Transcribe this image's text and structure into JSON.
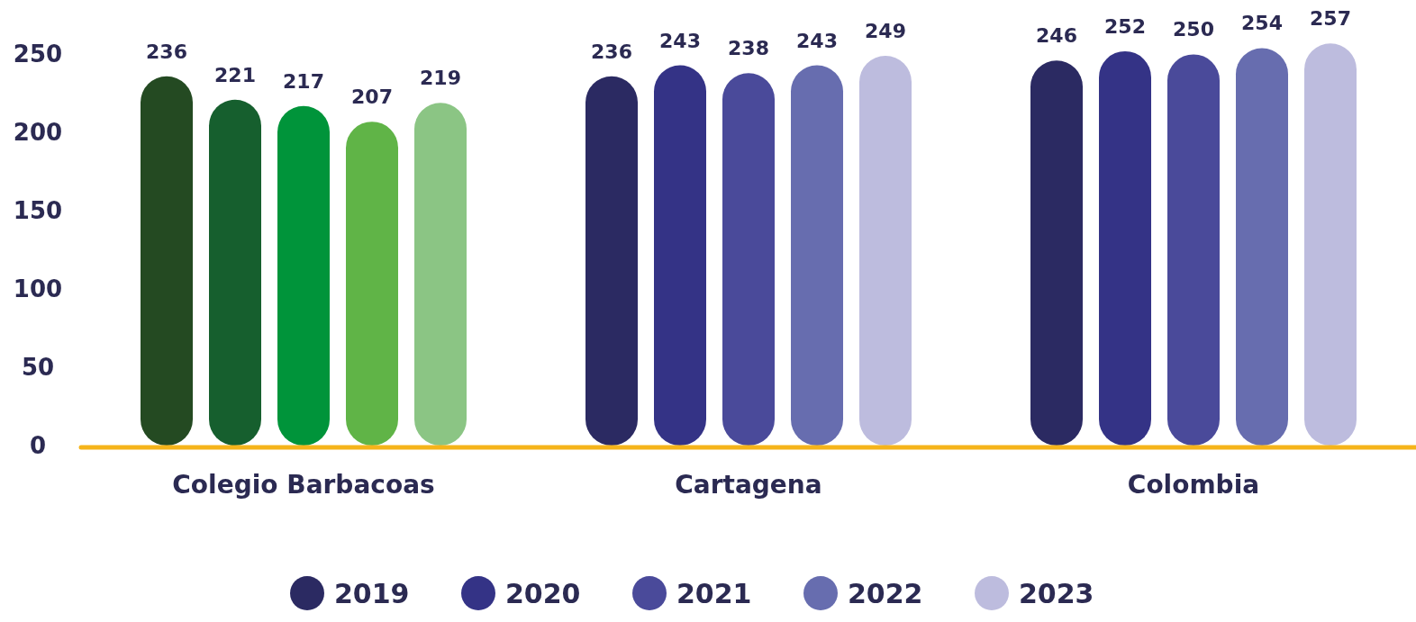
{
  "chart_data": {
    "type": "bar",
    "categories": [
      "Colegio Barbacoas",
      "Cartagena",
      "Colombia"
    ],
    "series": [
      {
        "name": "2019",
        "color": "#2b2a62",
        "colors": [
          "#244a22",
          "#2b2a62",
          "#2b2a62"
        ],
        "values": [
          236,
          236,
          246
        ]
      },
      {
        "name": "2020",
        "color": "#343386",
        "colors": [
          "#165f2e",
          "#343386",
          "#343386"
        ],
        "values": [
          221,
          243,
          252
        ]
      },
      {
        "name": "2021",
        "color": "#4a4a9a",
        "colors": [
          "#00943a",
          "#4a4a9a",
          "#4a4a9a"
        ],
        "values": [
          217,
          238,
          250
        ]
      },
      {
        "name": "2022",
        "color": "#676daf",
        "colors": [
          "#60b447",
          "#676daf",
          "#676daf"
        ],
        "values": [
          207,
          243,
          254
        ]
      },
      {
        "name": "2023",
        "color": "#bdbcde",
        "colors": [
          "#8bc584",
          "#bdbcde",
          "#bdbcde"
        ],
        "values": [
          219,
          249,
          257
        ]
      }
    ],
    "ylim": [
      0,
      260
    ],
    "yticks": [
      0,
      50,
      100,
      150,
      200,
      250
    ],
    "grid": false,
    "legend": "bottom",
    "data_labels": true
  }
}
